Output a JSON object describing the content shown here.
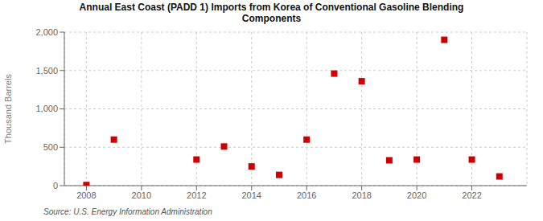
{
  "chart_data": {
    "type": "scatter",
    "title": "Annual East Coast (PADD 1) Imports from Korea of Conventional Gasoline Blending\nComponents",
    "ylabel": "Thousand Barrels",
    "annotations": [
      "Source: U.S. Energy Information Administration"
    ],
    "x": [
      2008,
      2009,
      2012,
      2013,
      2014,
      2015,
      2016,
      2017,
      2018,
      2019,
      2020,
      2021,
      2022,
      2023
    ],
    "values": [
      8,
      600,
      340,
      510,
      250,
      140,
      600,
      1460,
      1360,
      330,
      340,
      1900,
      340,
      120
    ],
    "color": "#cc0000",
    "marker": "square",
    "xlim": [
      2007.2,
      2024.0
    ],
    "ylim": [
      0,
      2000
    ],
    "xticks": [
      2008,
      2010,
      2012,
      2014,
      2016,
      2018,
      2020,
      2022
    ],
    "yticks": [
      0,
      500,
      {
        "value": 1000,
        "label": "1,000"
      },
      {
        "value": 1500,
        "label": "1,500"
      },
      {
        "value": 2000,
        "label": "2,000"
      }
    ],
    "grid": true
  }
}
